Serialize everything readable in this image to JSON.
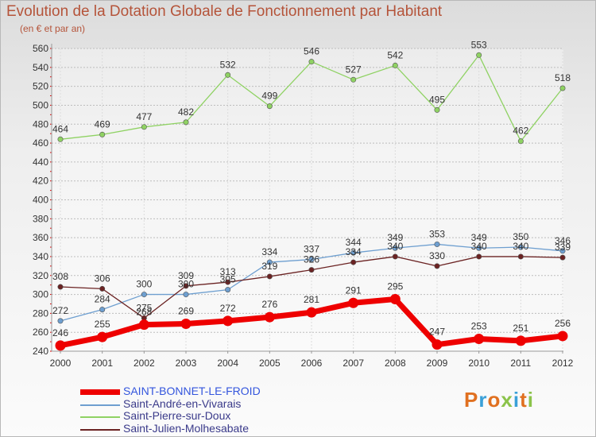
{
  "title": "Evolution de la Dotation Globale de Fonctionnement par Habitant",
  "subtitle": "(en € et par an)",
  "brand": {
    "logo_text": "Proxiti",
    "letter_colors": [
      "#e07020",
      "#3aa0d8",
      "#e07020",
      "#8bc34a",
      "#3aa0d8",
      "#e07020",
      "#8bc34a"
    ]
  },
  "chart_data": {
    "type": "line",
    "categories": [
      "2000",
      "2001",
      "2002",
      "2003",
      "2004",
      "2005",
      "2006",
      "2007",
      "2008",
      "2009",
      "2010",
      "2011",
      "2012"
    ],
    "ylim": [
      240,
      560
    ],
    "yticks": [
      240,
      260,
      280,
      300,
      320,
      340,
      360,
      380,
      400,
      420,
      440,
      460,
      480,
      500,
      520,
      540,
      560
    ],
    "grid": "horizontal",
    "xlabel": "",
    "ylabel": "",
    "series": [
      {
        "name": "Saint-Pierre-sur-Doux",
        "color": "#8fd263",
        "emphasis": false,
        "values": [
          464,
          469,
          477,
          482,
          532,
          499,
          546,
          527,
          542,
          495,
          553,
          462,
          518
        ],
        "labels": [
          "464",
          "469",
          "477",
          "482",
          "532",
          "499",
          "546",
          "527",
          "542",
          "495",
          "553",
          "462",
          "518"
        ]
      },
      {
        "name": "Saint-André-en-Vivarais",
        "color": "#6e9fd0",
        "emphasis": false,
        "values": [
          272,
          284,
          300,
          300,
          305,
          334,
          337,
          344,
          349,
          353,
          349,
          350,
          346
        ],
        "labels": [
          "272",
          "284",
          "300",
          "300",
          "305",
          "334",
          "337",
          "344",
          "349",
          "353",
          "349",
          "350",
          "346"
        ]
      },
      {
        "name": "Saint-Julien-Molhesabate",
        "color": "#6b2323",
        "emphasis": false,
        "values": [
          308,
          306,
          275,
          309,
          313,
          319,
          326,
          334,
          340,
          330,
          340,
          340,
          339
        ],
        "labels": [
          "308",
          "306",
          "275",
          "309",
          "313",
          "319",
          "326",
          "334",
          "340",
          "330",
          "340",
          "340",
          "339"
        ]
      },
      {
        "name": "SAINT-BONNET-LE-FROID",
        "color": "#ee0000",
        "emphasis": true,
        "values": [
          246,
          255,
          268,
          269,
          272,
          276,
          281,
          291,
          295,
          247,
          253,
          251,
          256
        ],
        "labels": [
          "246",
          "255",
          "268",
          "269",
          "272",
          "276",
          "281",
          "291",
          "295",
          "247",
          "253",
          "251",
          "256"
        ]
      }
    ],
    "legend": {
      "placement": "bottom-left",
      "order": [
        "SAINT-BONNET-LE-FROID",
        "Saint-André-en-Vivarais",
        "Saint-Pierre-sur-Doux",
        "Saint-Julien-Molhesabate"
      ]
    }
  }
}
